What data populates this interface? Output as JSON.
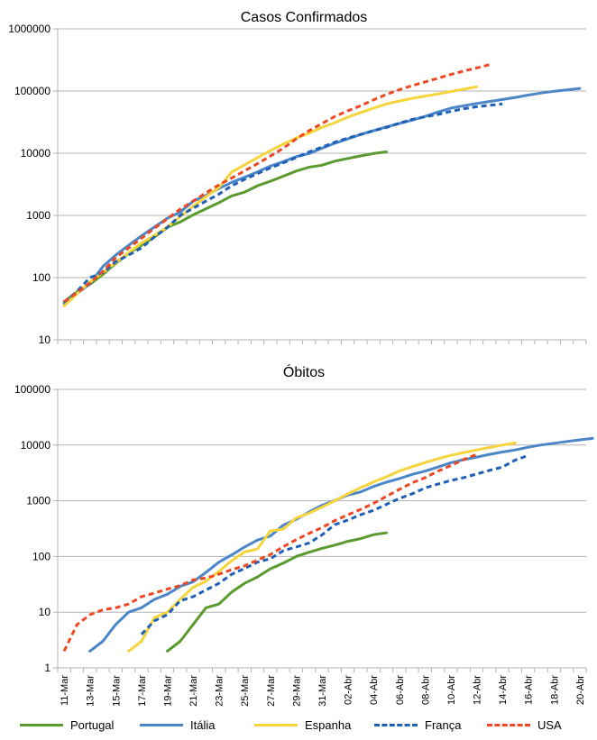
{
  "chart_data": [
    {
      "type": "line",
      "title": "Casos Confirmados",
      "y_scale": "log",
      "ylim": [
        10,
        1000000
      ],
      "y_ticks": [
        "10",
        "100",
        "1000",
        "10000",
        "100000",
        "1000000"
      ],
      "grid": "horizontal major gridlines",
      "x_ticks_label_every": 2,
      "series": [
        {
          "name": "Portugal",
          "color": "#5a9a2e",
          "dash": "solid",
          "start_index": 0,
          "values": [
            41,
            59,
            78,
            112,
            169,
            245,
            331,
            448,
            642,
            785,
            1020,
            1280,
            1600,
            2060,
            2362,
            2995,
            3544,
            4268,
            5170,
            5962,
            6408,
            7443,
            8251,
            9034,
            9886,
            10524
          ]
        },
        {
          "name": "Itália",
          "color": "#4a86c8",
          "dash": "solid",
          "start_index": 0,
          "values": [
            38,
            55,
            80,
            150,
            230,
            330,
            470,
            650,
            900,
            1130,
            1690,
            2100,
            2700,
            3400,
            4100,
            5000,
            6200,
            7300,
            8800,
            9900,
            12000,
            14500,
            17000,
            20000,
            23000,
            26500,
            30000,
            34000,
            39000,
            46000,
            53000,
            58000,
            63000,
            68000,
            73000,
            79000,
            86000,
            93000,
            99000,
            104000,
            110000
          ]
        },
        {
          "name": "Espanha",
          "color": "#f5d43c",
          "dash": "solid",
          "start_index": 0,
          "values": [
            35,
            55,
            85,
            120,
            175,
            250,
            360,
            480,
            650,
            950,
            1400,
            2000,
            2800,
            5000,
            6500,
            8500,
            11000,
            14000,
            17500,
            21000,
            26000,
            31000,
            38000,
            45000,
            53000,
            62000,
            69000,
            76000,
            83000,
            90000,
            98000,
            107000,
            117000
          ]
        },
        {
          "name": "França",
          "color": "#1f5fb5",
          "dash": "dashed",
          "start_index": 0,
          "values": [
            40,
            60,
            100,
            120,
            180,
            230,
            300,
            450,
            640,
            1000,
            1300,
            1700,
            2200,
            3000,
            3800,
            4700,
            5800,
            7000,
            8500,
            10500,
            12500,
            15000,
            17500,
            20000,
            23000,
            26000,
            30500,
            35000,
            38500,
            42000,
            47000,
            52000,
            56000,
            59000,
            62000
          ]
        },
        {
          "name": "USA",
          "color": "#ef4723",
          "dash": "dashed",
          "start_index": 0,
          "values": [
            41,
            57,
            82,
            125,
            210,
            300,
            430,
            620,
            880,
            1260,
            1700,
            2300,
            3100,
            4000,
            5200,
            6800,
            9000,
            12000,
            17000,
            23000,
            30000,
            39000,
            48000,
            58000,
            72000,
            88000,
            105000,
            122000,
            140000,
            160000,
            185000,
            210000,
            235000,
            265000
          ]
        }
      ]
    },
    {
      "type": "line",
      "title": "Óbitos",
      "y_scale": "log",
      "ylim": [
        1,
        100000
      ],
      "y_ticks": [
        "1",
        "10",
        "100",
        "1000",
        "10000",
        "100000"
      ],
      "grid": "horizontal major gridlines",
      "x_ticks_label_every": 2,
      "series": [
        {
          "name": "Portugal",
          "color": "#5a9a2e",
          "dash": "solid",
          "start_index": 8,
          "values": [
            2,
            3,
            6,
            12,
            14,
            23,
            33,
            43,
            60,
            76,
            100,
            119,
            140,
            160,
            187,
            209,
            246,
            266
          ]
        },
        {
          "name": "Itália",
          "color": "#4a86c8",
          "dash": "solid",
          "start_index": 2,
          "values": [
            2,
            3,
            6,
            10,
            12,
            17,
            21,
            29,
            35,
            52,
            79,
            107,
            148,
            197,
            233,
            366,
            463,
            631,
            827,
            1016,
            1266,
            1441,
            1809,
            2158,
            2503,
            2978,
            3405,
            4032,
            4825,
            5476,
            6077,
            6820,
            7503,
            8165,
            9134,
            10023,
            10779,
            11591,
            12428,
            13155
          ]
        },
        {
          "name": "Espanha",
          "color": "#f5d43c",
          "dash": "solid",
          "start_index": 5,
          "values": [
            2,
            3,
            8,
            10,
            17,
            28,
            36,
            54,
            84,
            121,
            136,
            288,
            309,
            491,
            598,
            767,
            1002,
            1326,
            1720,
            2182,
            2696,
            3434,
            4089,
            4858,
            5690,
            6528,
            7340,
            8189,
            9053,
            10003,
            10935
          ]
        },
        {
          "name": "França",
          "color": "#1f5fb5",
          "dash": "dashed",
          "start_index": 6,
          "values": [
            4,
            7,
            9,
            16,
            19,
            25,
            33,
            48,
            61,
            79,
            91,
            127,
            148,
            175,
            244,
            372,
            450,
            562,
            674,
            860,
            1100,
            1331,
            1696,
            1995,
            2314,
            2606,
            3024,
            3523,
            4032,
            5387,
            6507
          ]
        },
        {
          "name": "USA",
          "color": "#ef4723",
          "dash": "dashed",
          "start_index": 0,
          "values": [
            2,
            6,
            9,
            11,
            12,
            14,
            19,
            22,
            26,
            30,
            38,
            41,
            48,
            58,
            68,
            86,
            108,
            150,
            200,
            260,
            330,
            440,
            560,
            700,
            900,
            1200,
            1600,
            2100,
            2600,
            3400,
            4300,
            5500,
            6800
          ]
        }
      ]
    }
  ],
  "x_axis": {
    "categories": [
      "11-Mar",
      "12-Mar",
      "13-Mar",
      "14-Mar",
      "15-Mar",
      "16-Mar",
      "17-Mar",
      "18-Mar",
      "19-Mar",
      "20-Mar",
      "21-Mar",
      "22-Mar",
      "23-Mar",
      "24-Mar",
      "25-Mar",
      "26-Mar",
      "27-Mar",
      "28-Mar",
      "29-Mar",
      "30-Mar",
      "31-Mar",
      "01-Abr",
      "02-Abr",
      "03-Abr",
      "04-Abr",
      "05-Abr",
      "06-Abr",
      "07-Abr",
      "08-Abr",
      "09-Abr",
      "10-Abr",
      "11-Abr",
      "12-Abr",
      "13-Abr",
      "14-Abr",
      "15-Abr",
      "16-Abr",
      "17-Abr",
      "18-Abr",
      "19-Abr",
      "20-Abr"
    ],
    "label_rotation": "vertical"
  },
  "legend": {
    "placement": "bottom",
    "items": [
      {
        "label": "Portugal",
        "color": "#5a9a2e",
        "dash": "solid"
      },
      {
        "label": "Itália",
        "color": "#4a86c8",
        "dash": "solid"
      },
      {
        "label": "Espanha",
        "color": "#f5d43c",
        "dash": "solid"
      },
      {
        "label": "França",
        "color": "#1f5fb5",
        "dash": "dashed"
      },
      {
        "label": "USA",
        "color": "#ef4723",
        "dash": "dashed"
      }
    ]
  }
}
